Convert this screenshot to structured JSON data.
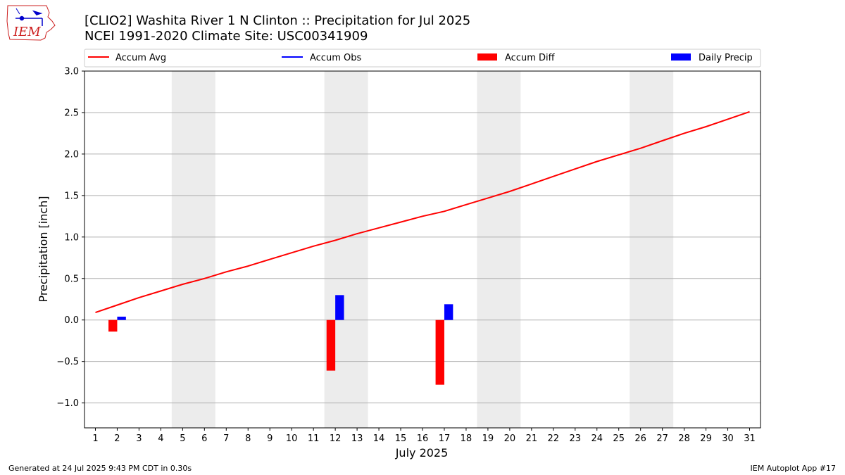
{
  "logo": {
    "text": "IEM"
  },
  "title": {
    "line1": "[CLIO2] Washita River 1 N Clinton :: Precipitation for Jul 2025",
    "line2": "NCEI 1991-2020 Climate Site: USC00341909"
  },
  "footer": {
    "left": "Generated at 24 Jul 2025 9:43 PM CDT in 0.30s",
    "right": "IEM Autoplot App #17"
  },
  "colors": {
    "avg": "#ff0000",
    "obs": "#0000ff",
    "diff": "#ff0000",
    "precip": "#0000ff",
    "weekend": "#ececec",
    "grid": "#b0b0b0"
  },
  "chart_data": {
    "type": "bar",
    "xlabel": "July 2025",
    "ylabel": "Precipitation [inch]",
    "xlim": [
      0.5,
      31.5
    ],
    "ylim": [
      -1.3,
      3.0
    ],
    "yticks": [
      -1.0,
      -0.5,
      0.0,
      0.5,
      1.0,
      1.5,
      2.0,
      2.5,
      3.0
    ],
    "ytick_labels": [
      "−1.0",
      "−0.5",
      "0.0",
      "0.5",
      "1.0",
      "1.5",
      "2.0",
      "2.5",
      "3.0"
    ],
    "xticks": [
      1,
      2,
      3,
      4,
      5,
      6,
      7,
      8,
      9,
      10,
      11,
      12,
      13,
      14,
      15,
      16,
      17,
      18,
      19,
      20,
      21,
      22,
      23,
      24,
      25,
      26,
      27,
      28,
      29,
      30,
      31
    ],
    "grid": "horizontal",
    "legend_position": "top",
    "legend": [
      {
        "label": "Accum Avg",
        "kind": "line",
        "color": "#ff0000"
      },
      {
        "label": "Accum Obs",
        "kind": "line",
        "color": "#0000ff"
      },
      {
        "label": "Accum Diff",
        "kind": "bar",
        "color": "#ff0000"
      },
      {
        "label": "Daily Precip",
        "kind": "bar",
        "color": "#0000ff"
      }
    ],
    "weekend_spans": [
      [
        4.5,
        6.5
      ],
      [
        11.5,
        13.5
      ],
      [
        18.5,
        20.5
      ],
      [
        25.5,
        27.5
      ]
    ],
    "accum_avg": {
      "days": [
        1,
        2,
        3,
        4,
        5,
        6,
        7,
        8,
        9,
        10,
        11,
        12,
        13,
        14,
        15,
        16,
        17,
        18,
        19,
        20,
        21,
        22,
        23,
        24,
        25,
        26,
        27,
        28,
        29,
        30,
        31
      ],
      "values": [
        0.09,
        0.18,
        0.27,
        0.35,
        0.43,
        0.5,
        0.58,
        0.65,
        0.73,
        0.81,
        0.89,
        0.96,
        1.04,
        1.11,
        1.18,
        1.25,
        1.31,
        1.39,
        1.47,
        1.55,
        1.64,
        1.73,
        1.82,
        1.91,
        1.99,
        2.07,
        2.16,
        2.25,
        2.33,
        2.42,
        2.51
      ]
    },
    "accum_diff": {
      "days": [
        2,
        12,
        17
      ],
      "values": [
        -0.14,
        -0.61,
        -0.78
      ]
    },
    "daily_precip": {
      "days": [
        2,
        12,
        17
      ],
      "values": [
        0.04,
        0.3,
        0.19
      ]
    }
  }
}
